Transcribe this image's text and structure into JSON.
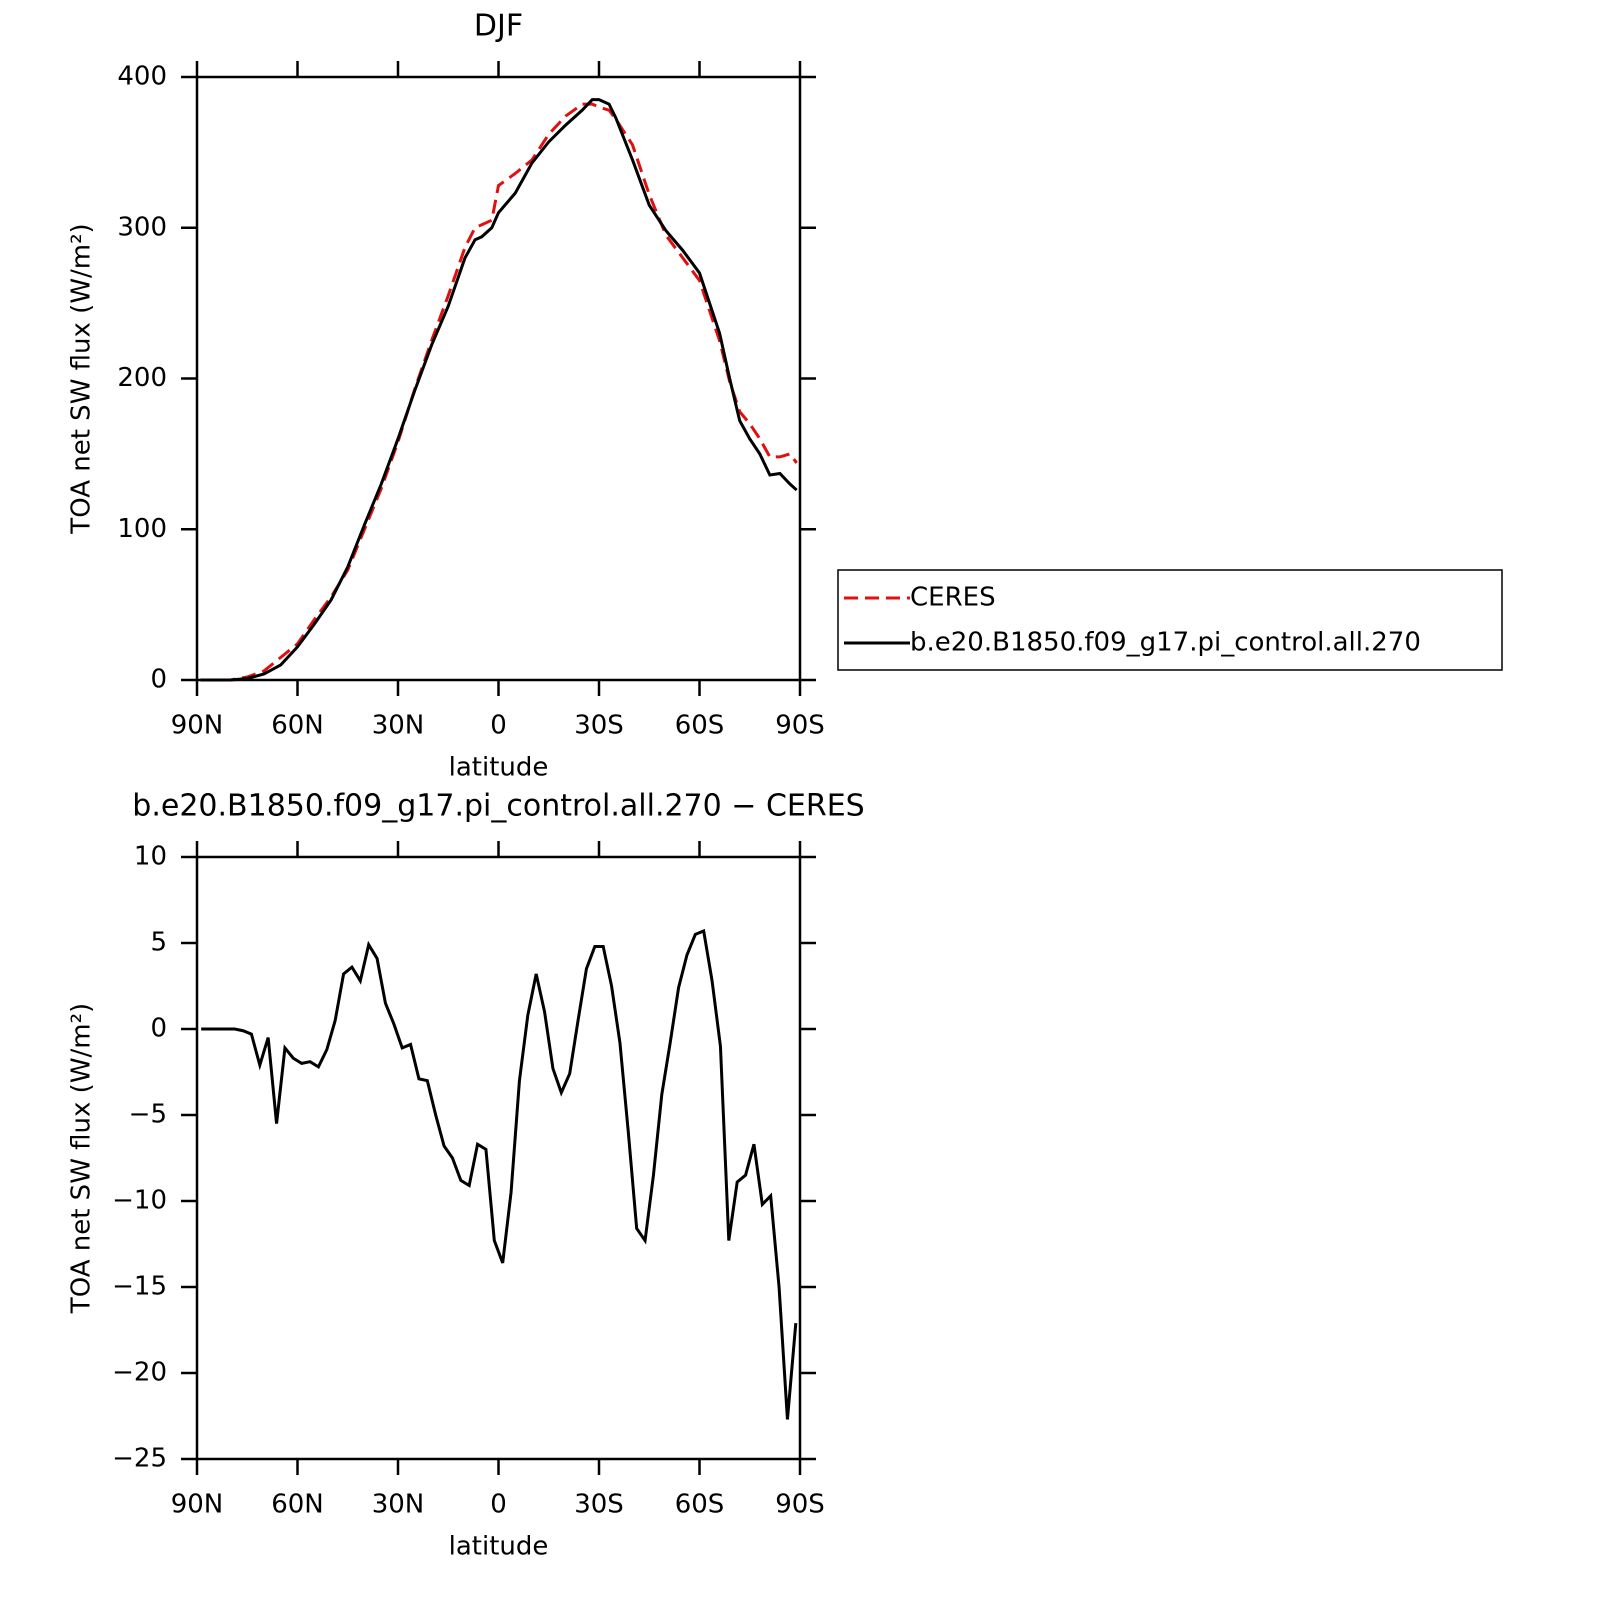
{
  "chart_data": [
    {
      "type": "line",
      "title": "DJF",
      "xlabel": "latitude",
      "ylabel": "TOA net SW flux (W/m²)",
      "x": [
        89,
        85,
        80,
        75,
        70,
        65,
        60,
        55,
        50,
        45,
        40,
        35,
        30,
        25,
        20,
        15,
        10,
        7,
        5,
        2,
        0,
        -5,
        -10,
        -15,
        -20,
        -25,
        -28,
        -30,
        -33,
        -35,
        -40,
        -45,
        -50,
        -55,
        -60,
        -63,
        -66,
        -69,
        -72,
        -75,
        -78,
        -81,
        -84,
        -87,
        -89
      ],
      "series": [
        {
          "name": "CERES",
          "color": "#e01010",
          "dashed": true,
          "values": [
            0,
            0,
            0,
            2,
            6,
            15,
            24,
            40,
            55,
            73,
            100,
            127,
            158,
            193,
            225,
            255,
            287,
            300,
            302,
            305,
            328,
            336,
            345,
            362,
            374,
            382,
            382,
            380,
            378,
            372,
            355,
            322,
            295,
            280,
            265,
            245,
            225,
            198,
            178,
            170,
            160,
            148,
            148,
            150,
            144
          ]
        },
        {
          "name": "b.e20.B1850.f09_g17.pi_control.all.270",
          "color": "#000000",
          "dashed": false,
          "values": [
            0,
            0,
            0,
            1,
            4,
            10,
            22,
            37,
            53,
            75,
            103,
            130,
            160,
            192,
            222,
            248,
            280,
            292,
            294,
            300,
            310,
            323,
            343,
            357,
            368,
            378,
            385,
            385,
            382,
            373,
            345,
            315,
            298,
            285,
            270,
            250,
            230,
            200,
            172,
            160,
            150,
            136,
            137,
            130,
            126
          ]
        }
      ],
      "xlim": [
        90,
        -90
      ],
      "xticks": [
        {
          "value": 90,
          "label": "90N"
        },
        {
          "value": 60,
          "label": "60N"
        },
        {
          "value": 30,
          "label": "30N"
        },
        0,
        {
          "value": -30,
          "label": "30S"
        },
        {
          "value": -60,
          "label": "60S"
        },
        {
          "value": -90,
          "label": "90S"
        }
      ],
      "ylim": [
        0,
        400
      ],
      "yticks": [
        0,
        100,
        200,
        300,
        400
      ],
      "legend": "right"
    },
    {
      "type": "line",
      "title": "b.e20.B1850.f09_g17.pi_control.all.270 − CERES",
      "xlabel": "latitude",
      "ylabel": "TOA net SW flux (W/m²)",
      "x": [
        88.75,
        86.25,
        83.75,
        81.25,
        78.75,
        76.25,
        73.75,
        71.25,
        68.75,
        66.25,
        63.75,
        61.25,
        58.75,
        56.25,
        53.75,
        51.25,
        48.75,
        46.25,
        43.75,
        41.25,
        38.75,
        36.25,
        33.75,
        31.25,
        28.75,
        26.25,
        23.75,
        21.25,
        18.75,
        16.25,
        13.75,
        11.25,
        8.75,
        6.25,
        3.75,
        1.25,
        -1.25,
        -3.75,
        -6.25,
        -8.75,
        -11.25,
        -13.75,
        -16.25,
        -18.75,
        -21.25,
        -23.75,
        -26.25,
        -28.75,
        -31.25,
        -33.75,
        -36.25,
        -38.75,
        -41.25,
        -43.75,
        -46.25,
        -48.75,
        -51.25,
        -53.75,
        -56.25,
        -58.75,
        -61.25,
        -63.75,
        -66.25,
        -68.75,
        -71.25,
        -73.75,
        -76.25,
        -78.75,
        -81.25,
        -83.75,
        -86.25,
        -88.75
      ],
      "values": [
        0,
        0,
        0,
        0,
        0,
        -0.1,
        -0.3,
        -2.1,
        -0.5,
        -5.5,
        -1.1,
        -1.7,
        -2.0,
        -1.9,
        -2.2,
        -1.2,
        0.5,
        3.2,
        3.6,
        2.8,
        4.9,
        4.1,
        1.5,
        0.3,
        -1.1,
        -0.9,
        -2.9,
        -3.0,
        -5.0,
        -6.8,
        -7.5,
        -8.8,
        -9.1,
        -6.7,
        -7.0,
        -12.3,
        -13.6,
        -9.5,
        -3.0,
        0.8,
        3.2,
        1.0,
        -2.3,
        -3.7,
        -2.6,
        0.5,
        3.5,
        4.8,
        4.8,
        2.5,
        -0.8,
        -6.0,
        -11.6,
        -12.3,
        -8.5,
        -3.8,
        -0.8,
        2.4,
        4.3,
        5.5,
        5.7,
        2.8,
        -1.0,
        -12.3,
        -8.9,
        -8.5,
        -6.7,
        -10.2,
        -9.7,
        -15.0,
        -22.7,
        -17.1
      ],
      "color": "#000000",
      "xlim": [
        90,
        -90
      ],
      "xticks": [
        {
          "value": 90,
          "label": "90N"
        },
        {
          "value": 60,
          "label": "60N"
        },
        {
          "value": 30,
          "label": "30N"
        },
        0,
        {
          "value": -30,
          "label": "30S"
        },
        {
          "value": -60,
          "label": "60S"
        },
        {
          "value": -90,
          "label": "90S"
        }
      ],
      "ylim": [
        -25,
        10
      ],
      "yticks": [
        10,
        5,
        0,
        {
          "value": -5,
          "label": "−5"
        },
        {
          "value": -10,
          "label": "−10"
        },
        {
          "value": -15,
          "label": "−15"
        },
        {
          "value": -20,
          "label": "−20"
        },
        {
          "value": -25,
          "label": "−25"
        }
      ]
    }
  ]
}
